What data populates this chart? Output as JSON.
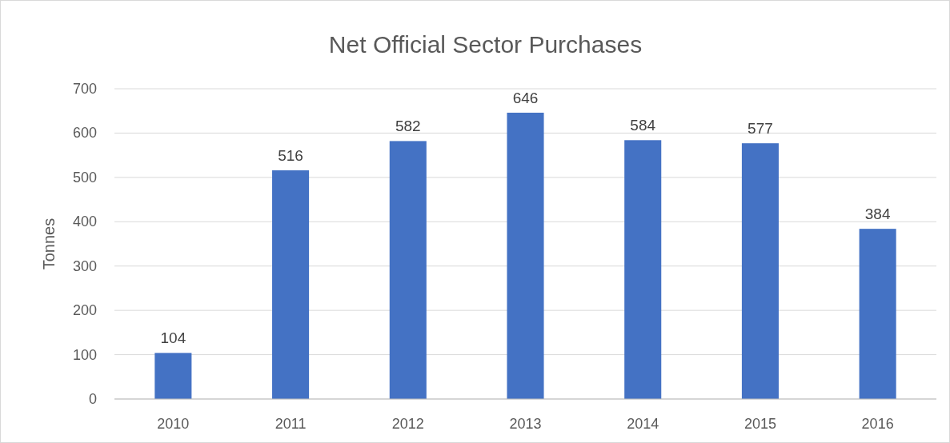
{
  "chart_data": {
    "type": "bar",
    "title": "Net Official Sector Purchases",
    "ylabel": "Tonnes",
    "categories": [
      "2010",
      "2011",
      "2012",
      "2013",
      "2014",
      "2015",
      "2016"
    ],
    "values": [
      104,
      516,
      582,
      646,
      584,
      577,
      384
    ],
    "color": "#4472c4",
    "ylim": [
      0,
      700
    ],
    "yticks": [
      0,
      100,
      200,
      300,
      400,
      500,
      600,
      700
    ],
    "grid": "y",
    "data_labels": true
  }
}
